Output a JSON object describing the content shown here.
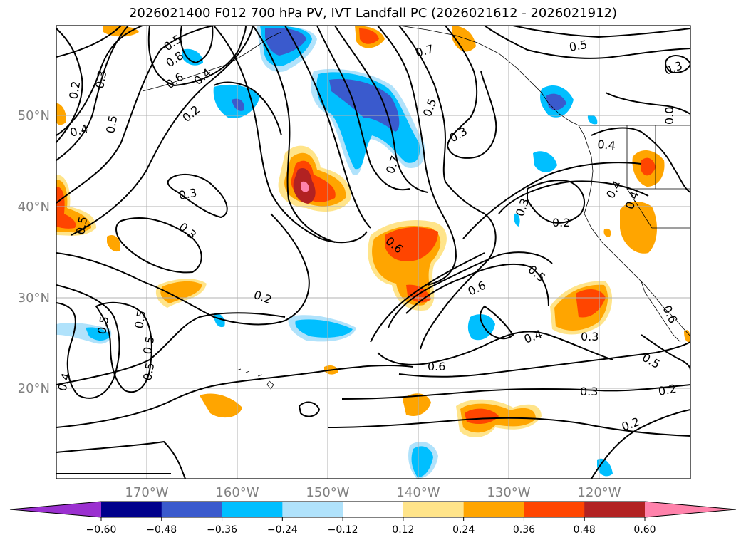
{
  "title": "2026021400 F012 700 hPa PV, IVT Landfall PC (2026021612 - 2026021912)",
  "axes": {
    "lat_labels": [
      "50°N",
      "40°N",
      "30°N",
      "20°N"
    ],
    "lon_labels": [
      "170°W",
      "160°W",
      "150°W",
      "140°W",
      "130°W",
      "120°W"
    ]
  },
  "colorbar": {
    "ticks": [
      "−0.60",
      "−0.48",
      "−0.36",
      "−0.24",
      "−0.12",
      "0.12",
      "0.24",
      "0.36",
      "0.48",
      "0.60"
    ],
    "colors": [
      "#9b30d0",
      "#00008b",
      "#3a5acd",
      "#00bfff",
      "#b0e2fb",
      "#ffffff",
      "#ffe48a",
      "#ffa500",
      "#ff4500",
      "#b22222",
      "#ff82ab"
    ]
  },
  "contour_labels": [
    "0.8",
    "0.7",
    "0.6",
    "0.4",
    "0.2",
    "0.3",
    "0.5",
    "0.4",
    "0.5",
    "0.3",
    "0.2",
    "0.3",
    "0.5",
    "0.6",
    "0.7",
    "0.3",
    "0.5",
    "0.4",
    "0.3",
    "0.5",
    "0.4",
    "0.2",
    "0.3",
    "0.5",
    "0.6",
    "0.4",
    "0.3",
    "0.2",
    "0.3",
    "0.5",
    "0.2",
    "0.2",
    "0.4",
    "0.5",
    "0.0",
    "0.5",
    "0.5",
    "0.6",
    "0.5",
    "0.4",
    "0.6"
  ],
  "colors": {
    "gridline": "#b0b0b0",
    "tick_label": "#808080",
    "contour": "#000000"
  }
}
